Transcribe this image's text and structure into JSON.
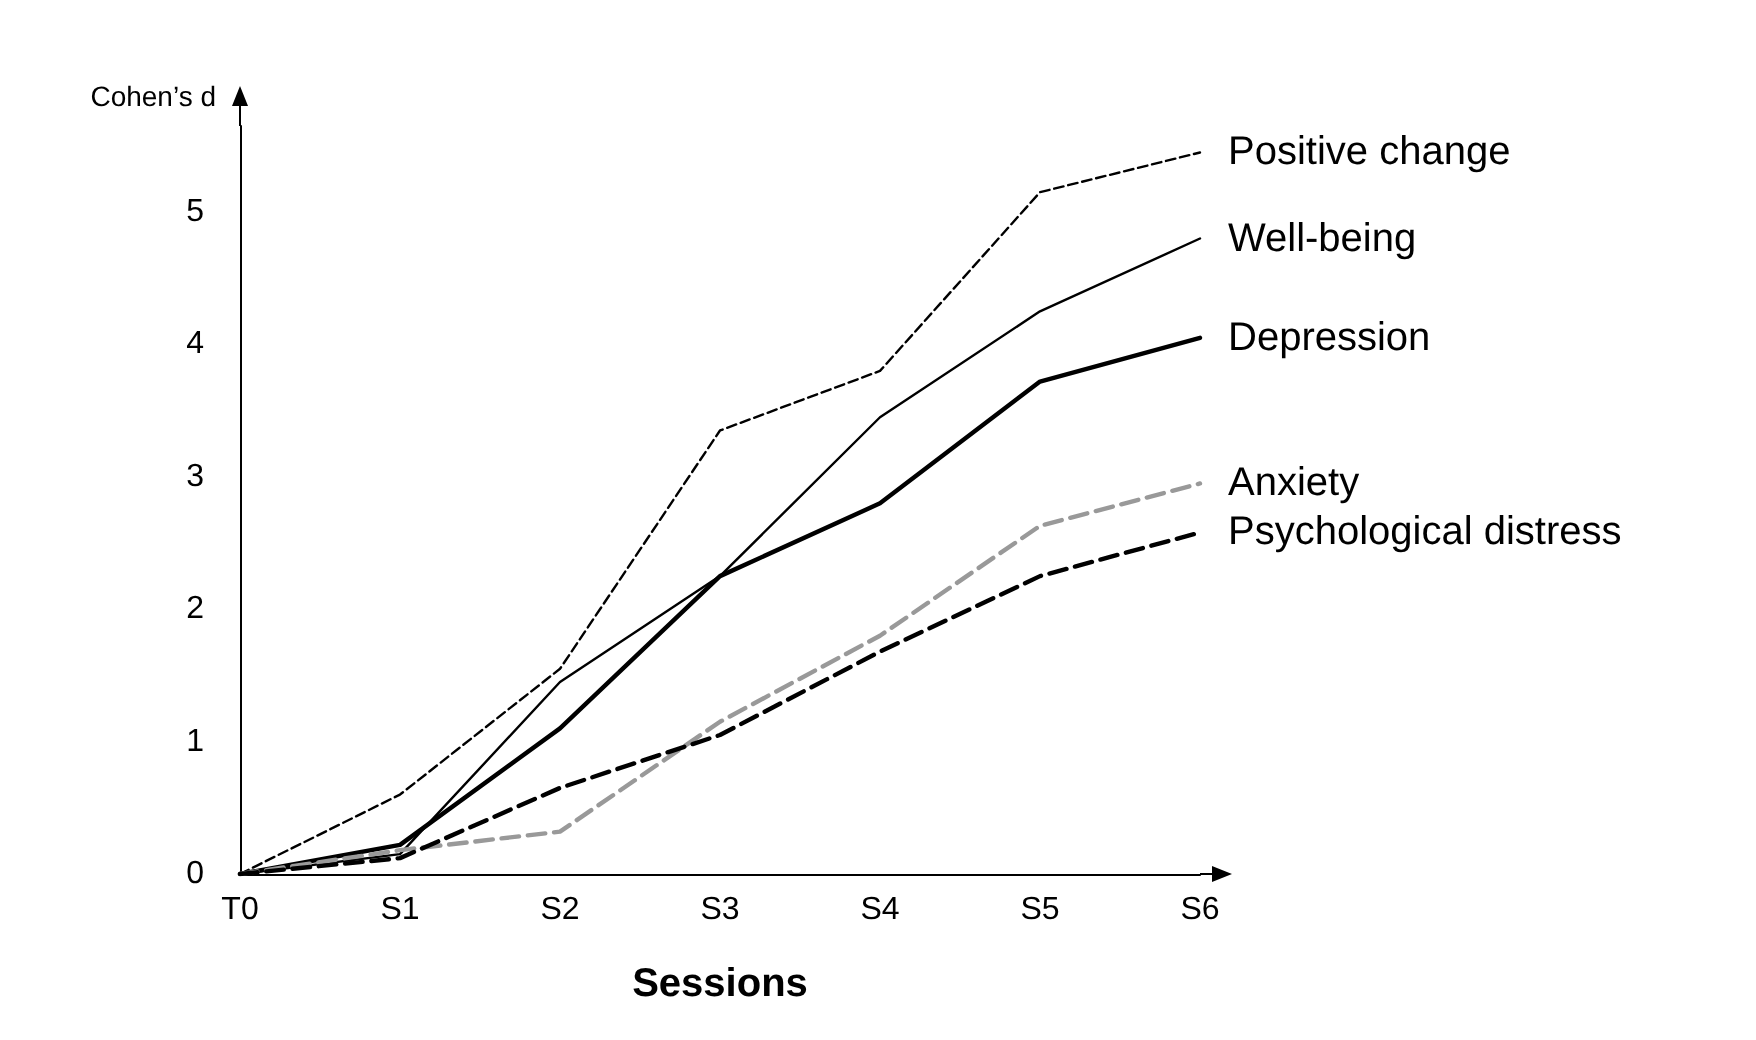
{
  "chart_data": {
    "type": "line",
    "xlabel": "Sessions",
    "ylabel": "Cohen’s d",
    "categories": [
      "T0",
      "S1",
      "S2",
      "S3",
      "S4",
      "S5",
      "S6"
    ],
    "series": [
      {
        "name": "Positive change",
        "color": "#000000",
        "line_style": "dashed",
        "values": [
          0,
          0.6,
          1.55,
          3.35,
          3.8,
          5.15,
          5.45
        ]
      },
      {
        "name": "Well-being",
        "color": "#000000",
        "line_style": "solid",
        "values": [
          0,
          0.15,
          1.45,
          2.25,
          3.45,
          4.25,
          4.8
        ]
      },
      {
        "name": "Depression",
        "color": "#000000",
        "line_style": "solid",
        "values": [
          0,
          0.22,
          1.1,
          2.25,
          2.8,
          3.72,
          4.05
        ]
      },
      {
        "name": "Anxiety",
        "color": "#999999",
        "line_style": "dashed",
        "values": [
          0,
          0.18,
          0.32,
          1.15,
          1.8,
          2.63,
          2.95
        ]
      },
      {
        "name": "Psychological distress",
        "color": "#000000",
        "line_style": "dashed",
        "values": [
          0,
          0.12,
          0.65,
          1.05,
          1.68,
          2.25,
          2.58
        ]
      }
    ],
    "ylim": [
      0,
      5.65
    ],
    "yticks": [
      0,
      1,
      2,
      3,
      4,
      5
    ],
    "grid": false,
    "legend": false,
    "marker": "none"
  }
}
